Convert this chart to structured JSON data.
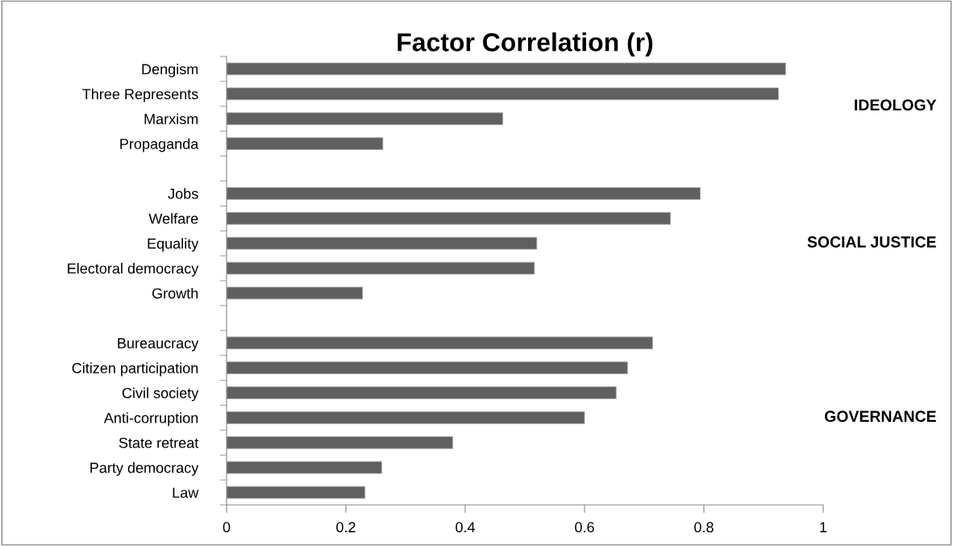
{
  "chart_data": {
    "type": "bar",
    "orientation": "horizontal",
    "title": "Factor Correlation (r)",
    "categories": [
      "Dengism",
      "Three Represents",
      "Marxism",
      "Propaganda",
      null,
      "Jobs",
      "Welfare",
      "Equality",
      "Electoral democracy",
      "Growth",
      null,
      "Bureaucracy",
      "Citizen participation",
      "Civil society",
      "Anti-corruption",
      "State retreat",
      "Party democracy",
      "Law"
    ],
    "values": [
      0.937,
      0.925,
      0.463,
      0.262,
      null,
      0.794,
      0.744,
      0.52,
      0.516,
      0.228,
      null,
      0.714,
      0.672,
      0.653,
      0.6,
      0.379,
      0.26,
      0.232
    ],
    "color": "#606060",
    "xlim": [
      0,
      1
    ],
    "xticks": [
      0,
      0.2,
      0.4,
      0.6,
      0.8,
      1
    ],
    "annotations": [
      "IDEOLOGY",
      "SOCIAL JUSTICE",
      "GOVERNANCE"
    ],
    "grid": false,
    "legend": false
  }
}
